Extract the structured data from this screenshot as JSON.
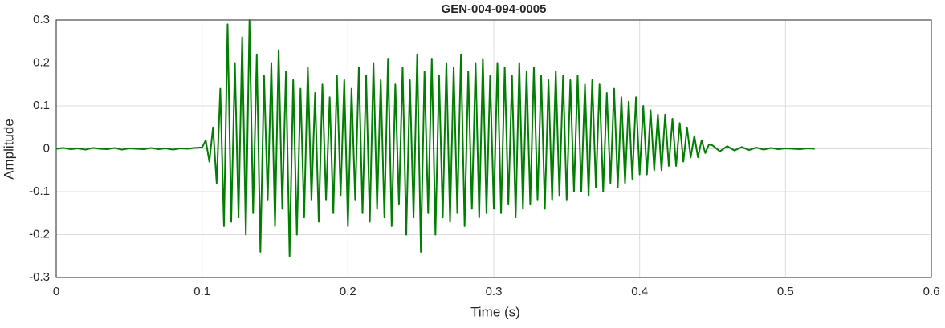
{
  "chart_data": {
    "type": "line",
    "title": "GEN-004-094-0005",
    "x_label": "Time (s)",
    "y_label": "Amplitude",
    "xlim": [
      0,
      0.6
    ],
    "xticks": [
      0,
      0.1,
      0.2,
      0.3,
      0.4,
      0.5,
      0.6
    ],
    "ylim": [
      -0.3,
      0.3
    ],
    "yticks": [
      -0.3,
      -0.2,
      -0.1,
      0,
      0.1,
      0.2,
      0.3
    ],
    "grid": true,
    "series": [
      {
        "color": "#007f00",
        "x": [
          0,
          0.005,
          0.01,
          0.015,
          0.02,
          0.025,
          0.03,
          0.035,
          0.04,
          0.045,
          0.05,
          0.055,
          0.06,
          0.065,
          0.07,
          0.075,
          0.08,
          0.085,
          0.09,
          0.095,
          0.1,
          0.1025,
          0.105,
          0.1075,
          0.11,
          0.1125,
          0.115,
          0.1175,
          0.12,
          0.1225,
          0.125,
          0.1275,
          0.13,
          0.1325,
          0.135,
          0.1375,
          0.14,
          0.1425,
          0.145,
          0.1475,
          0.15,
          0.1525,
          0.155,
          0.1575,
          0.16,
          0.1625,
          0.165,
          0.1675,
          0.17,
          0.1725,
          0.175,
          0.1775,
          0.18,
          0.1825,
          0.185,
          0.1875,
          0.19,
          0.1925,
          0.195,
          0.1975,
          0.2,
          0.2025,
          0.205,
          0.2075,
          0.21,
          0.2125,
          0.215,
          0.2175,
          0.22,
          0.2225,
          0.225,
          0.2275,
          0.23,
          0.2325,
          0.235,
          0.2375,
          0.24,
          0.2425,
          0.245,
          0.2475,
          0.25,
          0.2525,
          0.255,
          0.2575,
          0.26,
          0.2625,
          0.265,
          0.2675,
          0.27,
          0.2725,
          0.275,
          0.2775,
          0.28,
          0.2825,
          0.285,
          0.2875,
          0.29,
          0.2925,
          0.295,
          0.2975,
          0.3,
          0.3025,
          0.305,
          0.3075,
          0.31,
          0.3125,
          0.315,
          0.3175,
          0.32,
          0.3225,
          0.325,
          0.3275,
          0.33,
          0.3325,
          0.335,
          0.3375,
          0.34,
          0.3425,
          0.345,
          0.3475,
          0.35,
          0.3525,
          0.355,
          0.3575,
          0.36,
          0.3625,
          0.365,
          0.3675,
          0.37,
          0.3725,
          0.375,
          0.3775,
          0.38,
          0.3825,
          0.385,
          0.3875,
          0.39,
          0.3925,
          0.395,
          0.3975,
          0.4,
          0.4025,
          0.405,
          0.4075,
          0.41,
          0.4125,
          0.415,
          0.4175,
          0.42,
          0.4225,
          0.425,
          0.4275,
          0.43,
          0.4325,
          0.435,
          0.4375,
          0.44,
          0.4425,
          0.445,
          0.4475,
          0.45,
          0.455,
          0.46,
          0.465,
          0.47,
          0.475,
          0.48,
          0.485,
          0.49,
          0.495,
          0.5,
          0.505,
          0.51,
          0.515,
          0.52
        ],
        "values": [
          0,
          0.002,
          -0.001,
          0.001,
          -0.002,
          0.002,
          0,
          -0.001,
          0.002,
          -0.002,
          0.001,
          0,
          -0.001,
          0.002,
          -0.001,
          0.001,
          -0.002,
          0.001,
          0,
          0.002,
          0.003,
          0.02,
          -0.03,
          0.05,
          -0.08,
          0.14,
          -0.18,
          0.29,
          -0.17,
          0.2,
          -0.16,
          0.26,
          -0.2,
          0.3,
          -0.15,
          0.22,
          -0.24,
          0.17,
          -0.12,
          0.2,
          -0.18,
          0.23,
          -0.14,
          0.18,
          -0.25,
          0.16,
          -0.2,
          0.14,
          -0.16,
          0.19,
          -0.12,
          0.13,
          -0.17,
          0.15,
          -0.12,
          0.12,
          -0.15,
          0.17,
          -0.11,
          0.16,
          -0.18,
          0.14,
          -0.12,
          0.19,
          -0.15,
          0.17,
          -0.17,
          0.2,
          -0.14,
          0.16,
          -0.16,
          0.21,
          -0.18,
          0.15,
          -0.13,
          0.19,
          -0.2,
          0.16,
          -0.16,
          0.22,
          -0.24,
          0.18,
          -0.15,
          0.21,
          -0.2,
          0.17,
          -0.16,
          0.2,
          -0.17,
          0.19,
          -0.15,
          0.22,
          -0.18,
          0.18,
          -0.14,
          0.2,
          -0.16,
          0.21,
          -0.15,
          0.17,
          -0.14,
          0.2,
          -0.15,
          0.19,
          -0.13,
          0.17,
          -0.16,
          0.2,
          -0.14,
          0.18,
          -0.13,
          0.19,
          -0.12,
          0.17,
          -0.14,
          0.16,
          -0.12,
          0.18,
          -0.11,
          0.17,
          -0.12,
          0.16,
          -0.1,
          0.17,
          -0.1,
          0.15,
          -0.11,
          0.16,
          -0.09,
          0.15,
          -0.1,
          0.13,
          -0.08,
          0.14,
          -0.09,
          0.12,
          -0.08,
          0.11,
          -0.07,
          0.12,
          -0.06,
          0.1,
          -0.06,
          0.09,
          -0.05,
          0.08,
          -0.05,
          0.08,
          -0.04,
          0.07,
          -0.04,
          0.06,
          -0.03,
          0.05,
          -0.02,
          0.03,
          -0.02,
          0.02,
          -0.01,
          0.01,
          0.008,
          -0.006,
          0.006,
          -0.004,
          0.004,
          -0.003,
          0.003,
          -0.002,
          0.002,
          -0.001,
          0.001,
          0,
          -0.001,
          0.001,
          0
        ]
      }
    ]
  }
}
